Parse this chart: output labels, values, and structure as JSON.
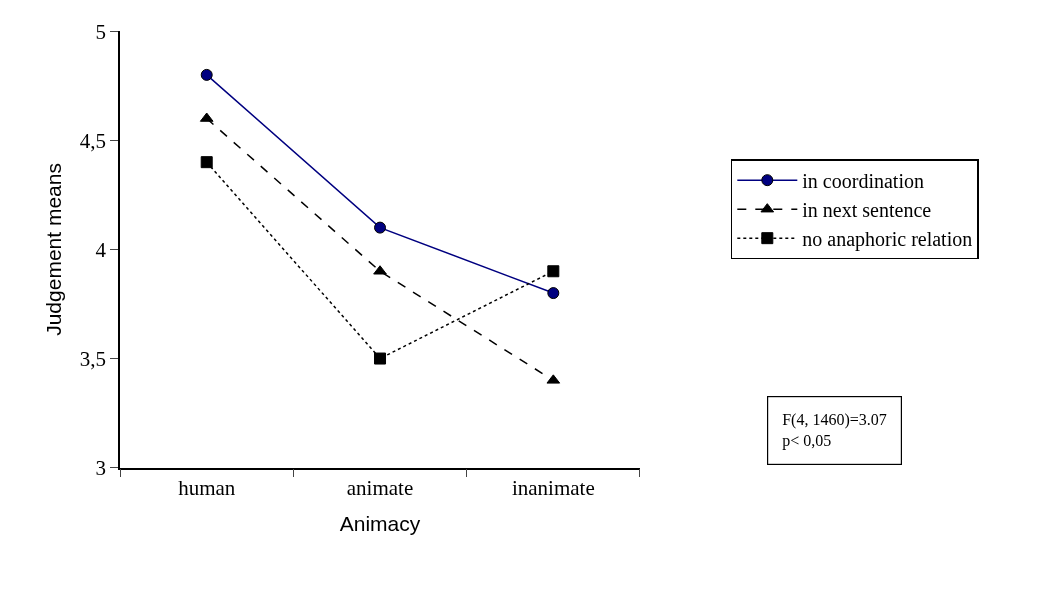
{
  "chart_data": {
    "type": "line",
    "xlabel": "Animacy",
    "ylabel": "Judgement means",
    "categories": [
      "human",
      "animate",
      "inanimate"
    ],
    "series": [
      {
        "name": "in coordination",
        "color": "#000080",
        "values": [
          4.8,
          4.1,
          3.8
        ],
        "marker": "circle",
        "line_style": "solid"
      },
      {
        "name": "in next sentence",
        "color": "#000000",
        "values": [
          4.6,
          3.9,
          3.4
        ],
        "marker": "triangle",
        "line_style": "dashed"
      },
      {
        "name": "no anaphoric relation",
        "color": "#000000",
        "values": [
          4.4,
          3.5,
          3.9
        ],
        "marker": "square",
        "line_style": "dotted"
      }
    ],
    "ylim": [
      3,
      5
    ],
    "yticks": [
      3,
      {
        "value": 3.5,
        "label": "3,5"
      },
      4,
      {
        "value": 4.5,
        "label": "4,5"
      },
      5
    ],
    "grid": false,
    "legend": "right",
    "annotations": [
      "F(4, 1460)=3.07",
      "p< 0,05"
    ]
  }
}
